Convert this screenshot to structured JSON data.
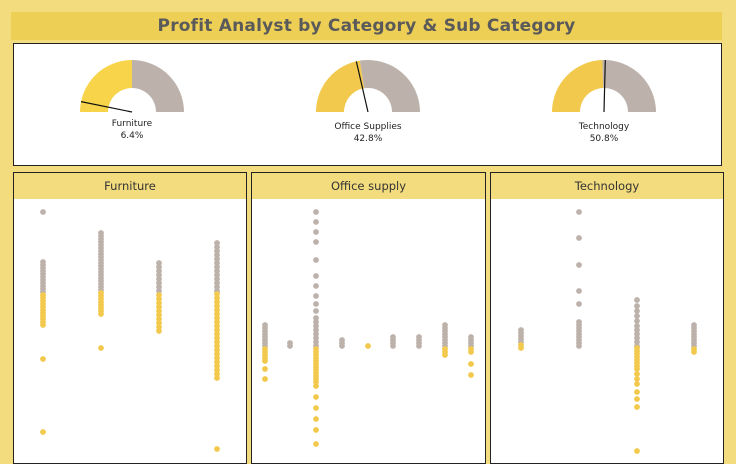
{
  "title": "Profit Analyst by Category & Sub Category",
  "colors": {
    "yellow": "#f2c94c",
    "yellow_bright": "#f8d44a",
    "grey": "#bdb2ab",
    "header": "#eecf55",
    "panel_header": "#f3dc7e"
  },
  "chart_data": [
    {
      "type": "gauge",
      "name": "gauges",
      "gauges": [
        {
          "label": "Furniture",
          "value_text": "6.4%",
          "value": 6.4,
          "fill": 0.5
        },
        {
          "label": "Office Supplies",
          "value_text": "42.8%",
          "value": 42.8,
          "fill": 0.45
        },
        {
          "label": "Technology",
          "value_text": "50.8%",
          "value": 50.8,
          "fill": 0.49
        }
      ]
    },
    {
      "type": "scatter",
      "title": "Furniture",
      "columns": [
        {
          "grey": [
            0,
            50,
            53,
            56,
            59,
            62,
            65,
            68,
            71,
            74,
            77,
            80
          ],
          "yellow": [
            83,
            86,
            89,
            92,
            95,
            98,
            101,
            104,
            107,
            110,
            113,
            147,
            220
          ]
        },
        {
          "grey": [
            21,
            24,
            27,
            30,
            33,
            36,
            39,
            42,
            45,
            48,
            51,
            54,
            57,
            60,
            63,
            66,
            69,
            72,
            75,
            78
          ],
          "yellow": [
            81,
            84,
            87,
            90,
            93,
            96,
            99,
            102,
            136
          ]
        },
        {
          "grey": [
            51,
            55,
            59,
            63,
            67,
            71,
            75,
            79
          ],
          "yellow": [
            83,
            87,
            91,
            95,
            99,
            103,
            107,
            111,
            115,
            119
          ]
        },
        {
          "grey": [
            31,
            35,
            39,
            43,
            47,
            51,
            55,
            59,
            63,
            67,
            71,
            75,
            79
          ],
          "yellow": [
            82,
            86,
            90,
            94,
            98,
            102,
            106,
            110,
            114,
            118,
            122,
            126,
            130,
            134,
            138,
            142,
            146,
            150,
            154,
            158,
            162,
            166,
            237
          ]
        }
      ]
    },
    {
      "type": "scatter",
      "title": "Office supply",
      "columns": [
        {
          "grey": [
            113,
            116,
            119,
            122,
            125,
            128,
            131,
            134
          ],
          "yellow": [
            137,
            140,
            143,
            146,
            149,
            157,
            167
          ]
        },
        {
          "grey": [
            131,
            134
          ],
          "yellow": []
        },
        {
          "grey": [
            0,
            10,
            20,
            30,
            48,
            64,
            74,
            84,
            92,
            99,
            106,
            110,
            114,
            118,
            122,
            126,
            130,
            134
          ],
          "yellow": [
            137,
            140,
            143,
            146,
            149,
            152,
            155,
            158,
            161,
            164,
            167,
            170,
            174,
            185,
            196,
            207,
            218,
            232
          ]
        },
        {
          "grey": [
            128,
            131,
            134
          ],
          "yellow": []
        },
        {
          "grey": [],
          "yellow": [
            134
          ]
        },
        {
          "grey": [
            125,
            128,
            131,
            134
          ],
          "yellow": []
        },
        {
          "grey": [
            125,
            128,
            131,
            134
          ],
          "yellow": []
        },
        {
          "grey": [
            113,
            116,
            119,
            122,
            125,
            128,
            131,
            134
          ],
          "yellow": [
            137,
            140,
            143
          ]
        },
        {
          "grey": [
            125,
            128,
            131,
            134
          ],
          "yellow": [
            137,
            140,
            152,
            163
          ]
        }
      ]
    },
    {
      "type": "scatter",
      "title": "Technology",
      "columns": [
        {
          "grey": [
            118,
            121,
            124,
            127,
            130
          ],
          "yellow": [
            133,
            136
          ]
        },
        {
          "grey": [
            0,
            26,
            53,
            79,
            92,
            110,
            113,
            116,
            119,
            122,
            125,
            128,
            131,
            134
          ],
          "yellow": []
        },
        {
          "grey": [
            88,
            94,
            99,
            104,
            109,
            114,
            118,
            122,
            126,
            130,
            134
          ],
          "yellow": [
            136,
            139,
            142,
            145,
            148,
            151,
            154,
            157,
            162,
            167,
            172,
            180,
            187,
            195,
            239
          ]
        },
        {
          "grey": [
            113,
            116,
            119,
            122,
            125,
            128,
            131,
            134
          ],
          "yellow": [
            137,
            140
          ]
        }
      ]
    }
  ]
}
